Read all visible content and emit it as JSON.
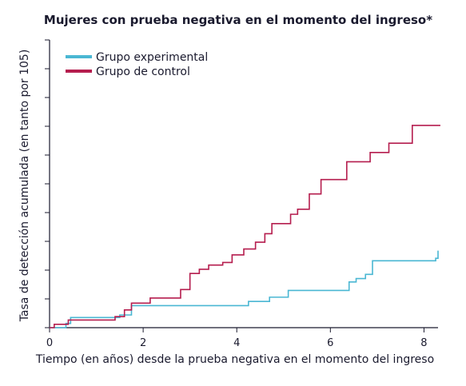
{
  "chart_data": {
    "type": "line",
    "title": "Mujeres con prueba negativa en el momento del ingreso*",
    "xlabel": "Tiempo (en años) desde la prueba negativa en el momento del ingreso",
    "ylabel": "Tasa de detección acumulada (en tanto por 105)",
    "xlim": [
      0,
      8.3
    ],
    "x_ticks": [
      0,
      2,
      4,
      6,
      8
    ],
    "y_ticks_count": 11,
    "y_tick_labels_shown": false,
    "grid": false,
    "legend_position": "top-left",
    "series": [
      {
        "name": "Grupo experimental",
        "color": "#4ab7d3",
        "step": true,
        "points": [
          [
            0,
            0
          ],
          [
            0.35,
            0.5
          ],
          [
            0.45,
            1.2
          ],
          [
            1.5,
            1.5
          ],
          [
            1.75,
            2.6
          ],
          [
            4.25,
            3.1
          ],
          [
            4.7,
            3.6
          ],
          [
            5.1,
            4.4
          ],
          [
            6.4,
            5.4
          ],
          [
            6.55,
            5.8
          ],
          [
            6.75,
            6.3
          ],
          [
            6.9,
            7.9
          ],
          [
            8.25,
            8.2
          ],
          [
            8.3,
            9.1
          ]
        ]
      },
      {
        "name": "Grupo de control",
        "color": "#b51d4e",
        "step": true,
        "points": [
          [
            0,
            0
          ],
          [
            0.1,
            0.4
          ],
          [
            0.4,
            0.9
          ],
          [
            1.4,
            1.3
          ],
          [
            1.6,
            2.1
          ],
          [
            1.75,
            2.9
          ],
          [
            2.15,
            3.5
          ],
          [
            2.8,
            4.5
          ],
          [
            3.0,
            6.4
          ],
          [
            3.2,
            6.9
          ],
          [
            3.4,
            7.4
          ],
          [
            3.7,
            7.7
          ],
          [
            3.9,
            8.6
          ],
          [
            4.15,
            9.3
          ],
          [
            4.4,
            10.1
          ],
          [
            4.6,
            11.1
          ],
          [
            4.75,
            12.3
          ],
          [
            5.15,
            13.4
          ],
          [
            5.3,
            14.0
          ],
          [
            5.55,
            15.8
          ],
          [
            5.8,
            17.5
          ],
          [
            6.35,
            19.6
          ],
          [
            6.85,
            20.7
          ],
          [
            7.25,
            21.8
          ],
          [
            7.75,
            23.9
          ],
          [
            8.35,
            23.9
          ]
        ]
      }
    ]
  }
}
